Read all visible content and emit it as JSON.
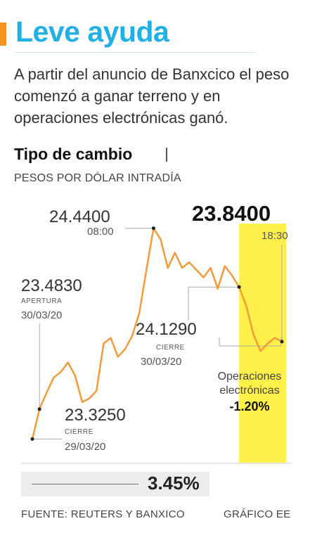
{
  "header": {
    "title": "Leve ayuda",
    "intro": "A partir del anuncio de Banxcico el peso comenzó a ganar terreno y en operaciones electrónicas ganó."
  },
  "chart_heading": {
    "title": "Tipo de cambio",
    "subtitle": "PESOS POR DÓLAR INTRADÍA"
  },
  "colors": {
    "title": "#1eb0e6",
    "accent": "#f7941d",
    "line": "#f39a3b",
    "highlight": "#fff04a"
  },
  "chart_data": {
    "type": "line",
    "x": [
      0,
      1,
      2,
      3,
      4,
      5,
      6,
      7,
      8,
      9,
      10,
      11,
      12,
      13,
      14,
      15,
      16,
      17,
      18,
      19,
      20,
      21,
      22,
      23,
      24,
      25,
      26,
      27,
      28,
      29,
      30,
      31,
      32,
      33,
      34,
      35
    ],
    "values": [
      23.325,
      23.483,
      23.57,
      23.65,
      23.68,
      23.73,
      23.66,
      23.52,
      23.54,
      23.58,
      23.83,
      23.86,
      23.76,
      23.8,
      23.87,
      23.99,
      24.22,
      24.44,
      24.38,
      24.23,
      24.31,
      24.23,
      24.26,
      24.22,
      24.18,
      24.23,
      24.12,
      24.24,
      24.19,
      24.129,
      24.03,
      23.88,
      23.79,
      23.83,
      23.86,
      23.84
    ],
    "ylim": [
      23.2,
      24.55
    ],
    "highlight_from_index": 29,
    "title": "Tipo de cambio",
    "ylabel": "PESOS POR DÓLAR INTRADÍA",
    "annotations": {
      "start": {
        "value": "23.3250",
        "label": "CIERRE",
        "date": "29/03/20"
      },
      "open": {
        "value": "23.4830",
        "label": "APERTURA",
        "date": "30/03/20"
      },
      "peak": {
        "value": "24.4400",
        "time": "08:00"
      },
      "close": {
        "value": "24.1290",
        "label": "CIERRE",
        "date": "30/03/20"
      },
      "last": {
        "value": "23.8400",
        "time": "18:30"
      },
      "electronic": {
        "label1": "Operaciones",
        "label2": "electrónicas",
        "change": "-1.20%"
      }
    },
    "total_change": "3.45%"
  },
  "footer": {
    "source": "FUENTE: REUTERS Y BANXICO",
    "credit": "GRÁFICO EE"
  }
}
